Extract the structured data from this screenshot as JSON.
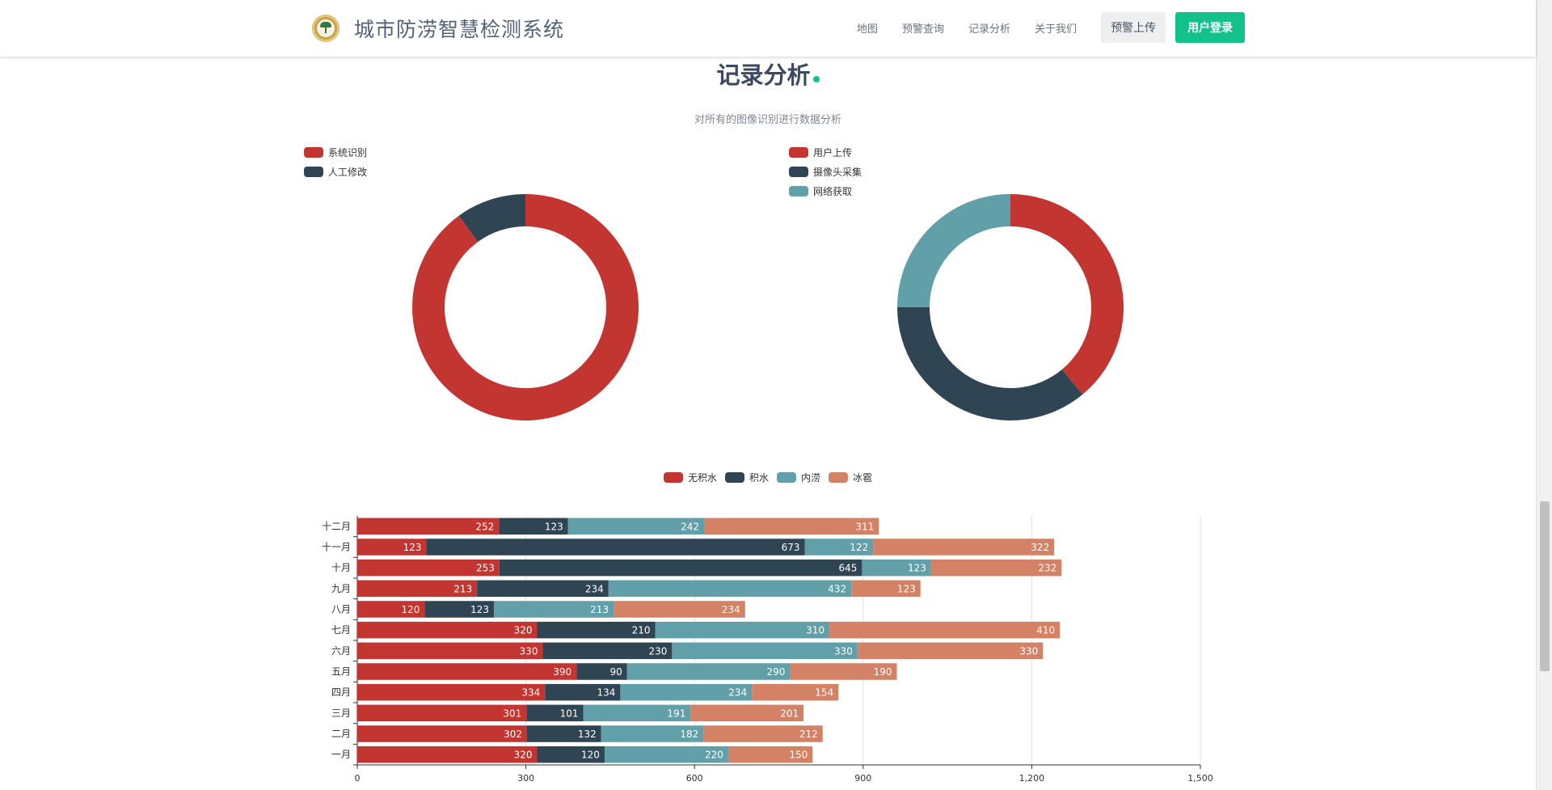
{
  "header": {
    "brand_title": "城市防涝智慧检测系统",
    "nav": [
      "地图",
      "预警查询",
      "记录分析",
      "关于我们"
    ],
    "upload_button": "预警上传",
    "login_button": "用户登录",
    "accent_color": "#13c28a"
  },
  "section": {
    "title": "记录分析",
    "subtitle": "对所有的图像识别进行数据分析"
  },
  "chart_data": [
    {
      "type": "pie",
      "style": "donut",
      "legend_position": "top-left",
      "labels": [
        "系统识别",
        "人工修改"
      ],
      "values": [
        90,
        10
      ],
      "colors": [
        "#c23531",
        "#2f4554"
      ]
    },
    {
      "type": "pie",
      "style": "donut",
      "legend_position": "top-left",
      "labels": [
        "用户上传",
        "摄像头采集",
        "网络获取"
      ],
      "values": [
        39,
        36,
        25
      ],
      "colors": [
        "#c23531",
        "#2f4554",
        "#61a0a8"
      ]
    },
    {
      "type": "bar",
      "orientation": "horizontal",
      "stacked": true,
      "legend_position": "top-center",
      "categories": [
        "一月",
        "二月",
        "三月",
        "四月",
        "五月",
        "六月",
        "七月",
        "八月",
        "九月",
        "十月",
        "十一月",
        "十二月"
      ],
      "series": [
        {
          "name": "无积水",
          "color": "#c23531",
          "values": [
            320,
            302,
            301,
            334,
            390,
            330,
            320,
            120,
            213,
            253,
            123,
            252
          ]
        },
        {
          "name": "积水",
          "color": "#2f4554",
          "values": [
            120,
            132,
            101,
            134,
            90,
            230,
            210,
            123,
            234,
            645,
            673,
            123
          ]
        },
        {
          "name": "内涝",
          "color": "#61a0a8",
          "values": [
            220,
            182,
            191,
            234,
            290,
            330,
            310,
            213,
            432,
            123,
            122,
            242
          ]
        },
        {
          "name": "冰雹",
          "color": "#d48265",
          "values": [
            150,
            212,
            201,
            154,
            190,
            330,
            410,
            234,
            123,
            232,
            322,
            311
          ]
        }
      ],
      "xlim": [
        0,
        1500
      ],
      "x_ticks": [
        "0",
        "300",
        "600",
        "900",
        "1,200",
        "1,500"
      ],
      "grid": true
    }
  ]
}
